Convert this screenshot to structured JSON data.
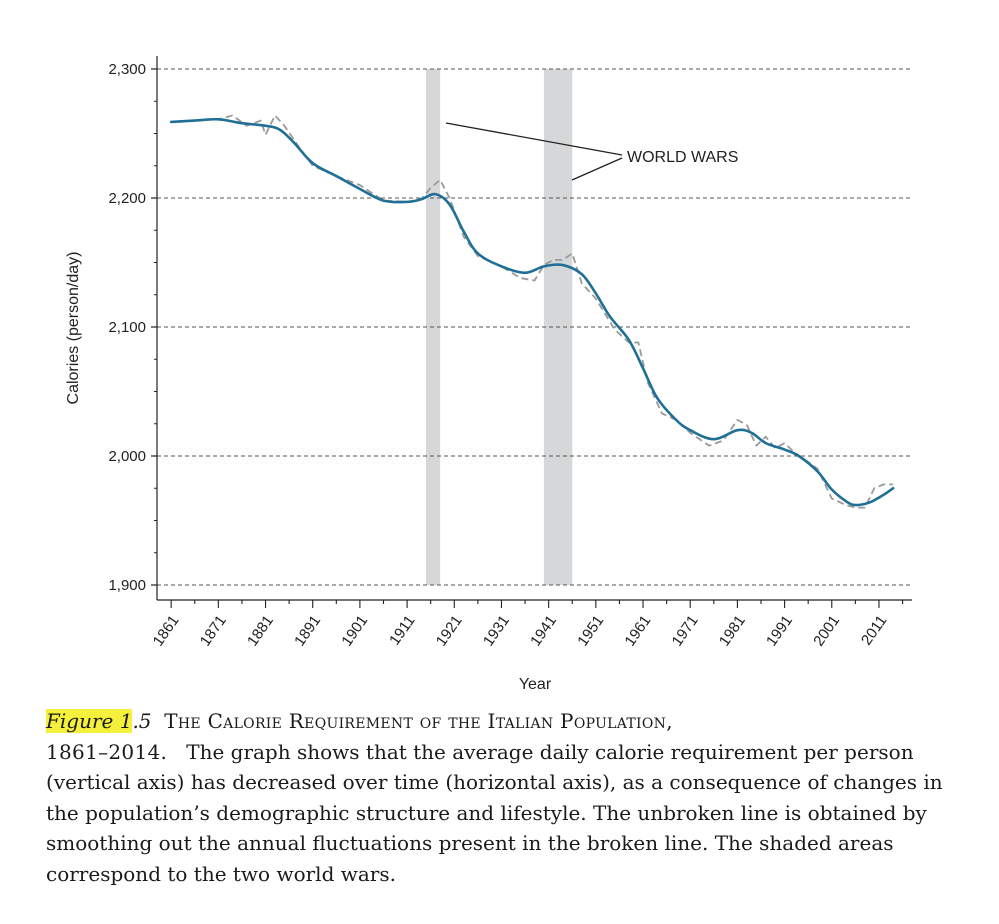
{
  "chart_data": {
    "type": "line",
    "xlabel": "Year",
    "ylabel": "Calories (person/day)",
    "xlim": [
      1858,
      2018
    ],
    "ylim": [
      1900,
      2300
    ],
    "y_ticks": [
      1900,
      2000,
      2100,
      2200,
      2300
    ],
    "y_tick_labels": [
      "1,900",
      "2,000",
      "2,100",
      "2,200",
      "2,300"
    ],
    "x_ticks": [
      1861,
      1871,
      1881,
      1891,
      1901,
      1911,
      1921,
      1931,
      1941,
      1951,
      1961,
      1971,
      1981,
      1991,
      2001,
      2011
    ],
    "grid": "horizontal dashed",
    "shaded_periods": [
      [
        1915,
        1918
      ],
      [
        1940,
        1946
      ]
    ],
    "annotation": "WORLD WARS",
    "series": [
      {
        "style": "solid",
        "color": "#1f6f96",
        "x": [
          1861,
          1866,
          1871,
          1876,
          1881,
          1884,
          1887,
          1891,
          1896,
          1901,
          1906,
          1911,
          1914,
          1917,
          1920,
          1923,
          1926,
          1931,
          1936,
          1940,
          1944,
          1948,
          1951,
          1954,
          1958,
          1961,
          1964,
          1968,
          1971,
          1976,
          1981,
          1984,
          1987,
          1991,
          1994,
          1998,
          2001,
          2004,
          2006,
          2009,
          2012,
          2014
        ],
        "y": [
          2259,
          2260,
          2261,
          2258,
          2256,
          2253,
          2243,
          2227,
          2217,
          2207,
          2198,
          2197,
          2199,
          2203,
          2195,
          2174,
          2157,
          2147,
          2142,
          2147,
          2148,
          2141,
          2126,
          2108,
          2090,
          2068,
          2045,
          2028,
          2020,
          2013,
          2020,
          2018,
          2010,
          2005,
          2000,
          1988,
          1974,
          1965,
          1962,
          1964,
          1970,
          1975
        ]
      },
      {
        "style": "dashed",
        "color": "#9a9a9a",
        "x": [
          1861,
          1866,
          1871,
          1874,
          1877,
          1880,
          1881,
          1883,
          1885,
          1888,
          1891,
          1896,
          1901,
          1906,
          1911,
          1914,
          1916,
          1918,
          1920,
          1923,
          1926,
          1931,
          1935,
          1938,
          1940,
          1942,
          1944,
          1946,
          1948,
          1951,
          1955,
          1958,
          1960,
          1962,
          1965,
          1968,
          1971,
          1975,
          1978,
          1981,
          1983,
          1985,
          1987,
          1989,
          1991,
          1993,
          1995,
          1998,
          2001,
          2004,
          2006,
          2008,
          2010,
          2012,
          2014
        ],
        "y": [
          2259,
          2260,
          2261,
          2264,
          2256,
          2260,
          2249,
          2264,
          2256,
          2240,
          2225,
          2217,
          2210,
          2198,
          2197,
          2199,
          2208,
          2214,
          2200,
          2170,
          2155,
          2147,
          2138,
          2136,
          2148,
          2152,
          2152,
          2157,
          2134,
          2122,
          2098,
          2088,
          2088,
          2057,
          2033,
          2028,
          2018,
          2008,
          2012,
          2028,
          2024,
          2008,
          2015,
          2006,
          2010,
          2003,
          1998,
          1990,
          1967,
          1962,
          1960,
          1960,
          1975,
          1978,
          1978
        ]
      }
    ]
  },
  "caption": {
    "label_highlight": "Figure 1",
    "label_rest": ".5",
    "title": "The Calorie Requirement of the Italian Population,",
    "title_cont": "1861–2014.",
    "body": "The graph shows that the average daily calorie requirement per person (vertical axis) has decreased over time (horizontal axis), as a consequence of changes in the population’s demographic structure and lifestyle. The unbroken line is obtained by smoothing out the annual fluctuations present in the broken line. The shaded areas correspond to the two world wars."
  }
}
